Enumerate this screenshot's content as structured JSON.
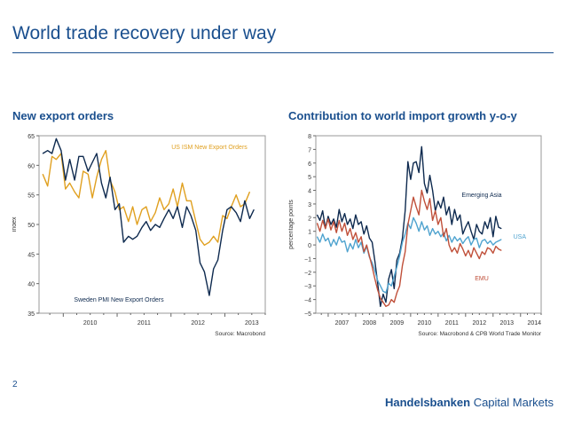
{
  "slide": {
    "title": "World trade recovery under way",
    "page_number": "2",
    "brand_strong": "Handelsbanken",
    "brand_light": " Capital Markets"
  },
  "chart_data": [
    {
      "type": "line",
      "title": "New export orders",
      "ylabel": "Index",
      "ylim": [
        35,
        65
      ],
      "yticks": [
        35,
        40,
        45,
        50,
        55,
        60,
        65
      ],
      "xlim": [
        2009.55,
        2013.75
      ],
      "xticks": [
        2010,
        2011,
        2012,
        2013
      ],
      "xtick_labels": [
        "2010",
        "2011",
        "2012",
        "2013"
      ],
      "source": "Source: Macrobond",
      "grid": false,
      "series": [
        {
          "name": "US ISM New Export Orders",
          "color": "#e0a020",
          "label_position": "top-right",
          "x": [
            2009.62,
            2009.71,
            2009.79,
            2009.87,
            2009.96,
            2010.04,
            2010.12,
            2010.21,
            2010.29,
            2010.37,
            2010.46,
            2010.54,
            2010.62,
            2010.71,
            2010.79,
            2010.87,
            2010.96,
            2011.04,
            2011.12,
            2011.21,
            2011.29,
            2011.37,
            2011.46,
            2011.54,
            2011.62,
            2011.71,
            2011.79,
            2011.87,
            2011.96,
            2012.04,
            2012.12,
            2012.21,
            2012.29,
            2012.37,
            2012.46,
            2012.54,
            2012.62,
            2012.71,
            2012.79,
            2012.87,
            2012.96,
            2013.04,
            2013.12,
            2013.21,
            2013.29,
            2013.37,
            2013.46
          ],
          "values": [
            58.5,
            56.5,
            61.5,
            61,
            62,
            56,
            57,
            55.5,
            54.5,
            59,
            58.5,
            54.5,
            58,
            61,
            62.5,
            57.5,
            55.5,
            52.5,
            53,
            50.5,
            53,
            50,
            52.5,
            53,
            50.5,
            52,
            54.5,
            52.5,
            53.5,
            56,
            53,
            57,
            54,
            54,
            50.5,
            47.5,
            46.5,
            47,
            48,
            47,
            51.5,
            51,
            53,
            55,
            53,
            53.5,
            55.5
          ]
        },
        {
          "name": "Sweden PMI New Export Orders",
          "color": "#0e2a4f",
          "label_position": "bottom-left",
          "x": [
            2009.62,
            2009.71,
            2009.79,
            2009.87,
            2009.96,
            2010.04,
            2010.12,
            2010.21,
            2010.29,
            2010.37,
            2010.46,
            2010.54,
            2010.62,
            2010.71,
            2010.79,
            2010.87,
            2010.96,
            2011.04,
            2011.12,
            2011.21,
            2011.29,
            2011.37,
            2011.46,
            2011.54,
            2011.62,
            2011.71,
            2011.79,
            2011.87,
            2011.96,
            2012.04,
            2012.12,
            2012.21,
            2012.29,
            2012.37,
            2012.46,
            2012.54,
            2012.62,
            2012.71,
            2012.79,
            2012.87,
            2012.96,
            2013.04,
            2013.12,
            2013.21,
            2013.29,
            2013.37,
            2013.46,
            2013.54
          ],
          "values": [
            62,
            62.5,
            62,
            64.5,
            62.5,
            57.5,
            61,
            57.5,
            61.5,
            61.5,
            59,
            60.5,
            62,
            57,
            54.5,
            58,
            52.5,
            53.5,
            47,
            48,
            47.5,
            48,
            49.5,
            50.5,
            49,
            50,
            49.5,
            51,
            52.5,
            51,
            53,
            49.5,
            53,
            51.5,
            49,
            43.5,
            42,
            38,
            42.5,
            44,
            49,
            52.5,
            53,
            52,
            50.5,
            54,
            51,
            52.5
          ]
        }
      ]
    },
    {
      "type": "line",
      "title": "Contribution to world import growth y-o-y",
      "ylabel": "percentage points",
      "ylim": [
        -5,
        8
      ],
      "yticks": [
        -5,
        -4,
        -3,
        -2,
        -1,
        0,
        1,
        2,
        3,
        4,
        5,
        6,
        7,
        8
      ],
      "xlim": [
        2006.55,
        2014.75
      ],
      "xticks": [
        2007,
        2008,
        2009,
        2010,
        2011,
        2012,
        2013,
        2014
      ],
      "xtick_labels": [
        "2007",
        "2008",
        "2009",
        "2010",
        "2011",
        "2012",
        "2013",
        "2014"
      ],
      "source": "Source: Macrobond & CPB World Trade Monitor",
      "grid": false,
      "series": [
        {
          "name": "Emerging Asia",
          "color": "#0e2a4f",
          "label_position": "upper-right",
          "x": [
            2006.6,
            2006.7,
            2006.8,
            2006.9,
            2007.0,
            2007.1,
            2007.2,
            2007.3,
            2007.4,
            2007.5,
            2007.6,
            2007.7,
            2007.8,
            2007.9,
            2008.0,
            2008.1,
            2008.2,
            2008.3,
            2008.4,
            2008.5,
            2008.6,
            2008.7,
            2008.8,
            2008.9,
            2009.0,
            2009.1,
            2009.2,
            2009.3,
            2009.4,
            2009.5,
            2009.6,
            2009.7,
            2009.8,
            2009.9,
            2010.0,
            2010.1,
            2010.2,
            2010.3,
            2010.4,
            2010.5,
            2010.6,
            2010.7,
            2010.8,
            2010.9,
            2011.0,
            2011.1,
            2011.2,
            2011.3,
            2011.4,
            2011.5,
            2011.6,
            2011.7,
            2011.8,
            2011.9,
            2012.0,
            2012.1,
            2012.2,
            2012.3,
            2012.4,
            2012.5,
            2012.6,
            2012.7,
            2012.8,
            2012.9,
            2013.0,
            2013.1,
            2013.2,
            2013.3
          ],
          "values": [
            2.2,
            1.8,
            2.5,
            1.2,
            2.1,
            1.5,
            1.9,
            1.3,
            2.6,
            1.7,
            2.3,
            1.5,
            1.9,
            1.2,
            2.2,
            1.5,
            1.7,
            0.8,
            1.4,
            0.5,
            0.2,
            -1.2,
            -2.8,
            -4.5,
            -3.6,
            -4.2,
            -2.5,
            -1.8,
            -3.2,
            -1.1,
            -0.6,
            0.5,
            2.5,
            6.1,
            4.8,
            6.0,
            6.1,
            5.3,
            7.2,
            4.5,
            3.8,
            5.1,
            4.0,
            2.5,
            3.2,
            2.7,
            3.5,
            2.2,
            2.8,
            1.5,
            2.6,
            1.8,
            2.2,
            0.8,
            1.3,
            1.7,
            1.0,
            0.4,
            1.5,
            1.0,
            0.8,
            1.7,
            1.2,
            2.0,
            0.6,
            2.1,
            1.3,
            1.2
          ]
        },
        {
          "name": "USA",
          "color": "#4fa3cf",
          "label_position": "right",
          "x": [
            2006.6,
            2006.7,
            2006.8,
            2006.9,
            2007.0,
            2007.1,
            2007.2,
            2007.3,
            2007.4,
            2007.5,
            2007.6,
            2007.7,
            2007.8,
            2007.9,
            2008.0,
            2008.1,
            2008.2,
            2008.3,
            2008.4,
            2008.5,
            2008.6,
            2008.7,
            2008.8,
            2008.9,
            2009.0,
            2009.1,
            2009.2,
            2009.3,
            2009.4,
            2009.5,
            2009.6,
            2009.7,
            2009.8,
            2009.9,
            2010.0,
            2010.1,
            2010.2,
            2010.3,
            2010.4,
            2010.5,
            2010.6,
            2010.7,
            2010.8,
            2010.9,
            2011.0,
            2011.1,
            2011.2,
            2011.3,
            2011.4,
            2011.5,
            2011.6,
            2011.7,
            2011.8,
            2011.9,
            2012.0,
            2012.1,
            2012.2,
            2012.3,
            2012.4,
            2012.5,
            2012.6,
            2012.7,
            2012.8,
            2012.9,
            2013.0,
            2013.1,
            2013.2,
            2013.3
          ],
          "values": [
            0.6,
            0.2,
            0.8,
            0.3,
            0.5,
            -0.1,
            0.4,
            0.0,
            0.6,
            0.2,
            0.3,
            -0.5,
            0.1,
            -0.3,
            0.4,
            -0.2,
            0.2,
            -0.6,
            -0.1,
            -0.9,
            -1.3,
            -1.9,
            -2.6,
            -3.0,
            -3.4,
            -3.5,
            -2.8,
            -3.0,
            -2.3,
            -1.6,
            -0.8,
            0.2,
            0.8,
            1.6,
            1.2,
            2.0,
            1.6,
            1.0,
            1.7,
            1.1,
            1.4,
            0.7,
            1.2,
            0.8,
            1.0,
            0.6,
            0.9,
            0.3,
            0.7,
            0.2,
            0.6,
            0.3,
            0.5,
            0.1,
            0.4,
            0.6,
            0.0,
            0.4,
            0.5,
            -0.2,
            0.3,
            0.4,
            0.1,
            0.3,
            0.0,
            0.2,
            0.3,
            0.4
          ]
        },
        {
          "name": "EMU",
          "color": "#c0503a",
          "label_position": "lower-right",
          "x": [
            2006.6,
            2006.7,
            2006.8,
            2006.9,
            2007.0,
            2007.1,
            2007.2,
            2007.3,
            2007.4,
            2007.5,
            2007.6,
            2007.7,
            2007.8,
            2007.9,
            2008.0,
            2008.1,
            2008.2,
            2008.3,
            2008.4,
            2008.5,
            2008.6,
            2008.7,
            2008.8,
            2008.9,
            2009.0,
            2009.1,
            2009.2,
            2009.3,
            2009.4,
            2009.5,
            2009.6,
            2009.7,
            2009.8,
            2009.9,
            2010.0,
            2010.1,
            2010.2,
            2010.3,
            2010.4,
            2010.5,
            2010.6,
            2010.7,
            2010.8,
            2010.9,
            2011.0,
            2011.1,
            2011.2,
            2011.3,
            2011.4,
            2011.5,
            2011.6,
            2011.7,
            2011.8,
            2011.9,
            2012.0,
            2012.1,
            2012.2,
            2012.3,
            2012.4,
            2012.5,
            2012.6,
            2012.7,
            2012.8,
            2012.9,
            2013.0,
            2013.1,
            2013.2,
            2013.3
          ],
          "values": [
            1.6,
            1.0,
            1.8,
            1.2,
            1.9,
            1.1,
            1.7,
            0.9,
            1.8,
            1.0,
            1.6,
            0.7,
            1.2,
            0.4,
            0.9,
            0.2,
            0.6,
            -0.5,
            0.0,
            -0.8,
            -1.6,
            -2.5,
            -3.3,
            -3.9,
            -4.2,
            -4.5,
            -4.4,
            -4.0,
            -4.2,
            -3.5,
            -3.0,
            -1.5,
            -0.5,
            1.5,
            2.5,
            3.5,
            2.8,
            2.2,
            4.0,
            3.2,
            2.6,
            3.4,
            1.8,
            2.5,
            1.5,
            2.0,
            0.6,
            1.2,
            0.0,
            -0.5,
            -0.2,
            -0.6,
            0.1,
            -0.3,
            -0.8,
            -0.4,
            -0.9,
            -0.2,
            -0.6,
            -1.0,
            -0.5,
            -0.7,
            -0.2,
            -0.3,
            -0.6,
            -0.1,
            -0.3,
            -0.4
          ]
        }
      ]
    }
  ]
}
